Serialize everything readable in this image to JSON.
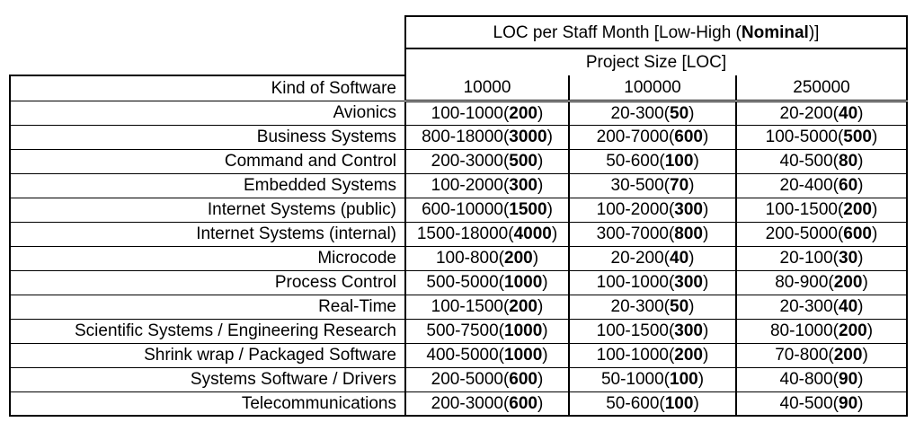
{
  "colors": {
    "background": "#ffffff",
    "border": "#000000",
    "text": "#000000"
  },
  "table": {
    "title": {
      "prefix": "LOC per Staff Month [Low-High (",
      "bold": "Nominal",
      "suffix": ")]"
    },
    "subtitle": "Project Size [LOC]",
    "row_header": "Kind of Software",
    "size_columns": [
      "10000",
      "100000",
      "250000"
    ],
    "rows": [
      {
        "kind": "Avionics",
        "sizes": [
          {
            "low": 100,
            "high": 1000,
            "nominal": 200
          },
          {
            "low": 20,
            "high": 300,
            "nominal": 50
          },
          {
            "low": 20,
            "high": 200,
            "nominal": 40
          }
        ]
      },
      {
        "kind": "Business Systems",
        "sizes": [
          {
            "low": 800,
            "high": 18000,
            "nominal": 3000
          },
          {
            "low": 200,
            "high": 7000,
            "nominal": 600
          },
          {
            "low": 100,
            "high": 5000,
            "nominal": 500
          }
        ]
      },
      {
        "kind": "Command and Control",
        "sizes": [
          {
            "low": 200,
            "high": 3000,
            "nominal": 500
          },
          {
            "low": 50,
            "high": 600,
            "nominal": 100
          },
          {
            "low": 40,
            "high": 500,
            "nominal": 80
          }
        ]
      },
      {
        "kind": "Embedded Systems",
        "sizes": [
          {
            "low": 100,
            "high": 2000,
            "nominal": 300
          },
          {
            "low": 30,
            "high": 500,
            "nominal": 70
          },
          {
            "low": 20,
            "high": 400,
            "nominal": 60
          }
        ]
      },
      {
        "kind": "Internet Systems (public)",
        "sizes": [
          {
            "low": 600,
            "high": 10000,
            "nominal": 1500
          },
          {
            "low": 100,
            "high": 2000,
            "nominal": 300
          },
          {
            "low": 100,
            "high": 1500,
            "nominal": 200
          }
        ]
      },
      {
        "kind": "Internet Systems (internal)",
        "sizes": [
          {
            "low": 1500,
            "high": 18000,
            "nominal": 4000
          },
          {
            "low": 300,
            "high": 7000,
            "nominal": 800
          },
          {
            "low": 200,
            "high": 5000,
            "nominal": 600
          }
        ]
      },
      {
        "kind": "Microcode",
        "sizes": [
          {
            "low": 100,
            "high": 800,
            "nominal": 200
          },
          {
            "low": 20,
            "high": 200,
            "nominal": 40
          },
          {
            "low": 20,
            "high": 100,
            "nominal": 30
          }
        ]
      },
      {
        "kind": "Process Control",
        "sizes": [
          {
            "low": 500,
            "high": 5000,
            "nominal": 1000
          },
          {
            "low": 100,
            "high": 1000,
            "nominal": 300
          },
          {
            "low": 80,
            "high": 900,
            "nominal": 200
          }
        ]
      },
      {
        "kind": "Real-Time",
        "sizes": [
          {
            "low": 100,
            "high": 1500,
            "nominal": 200
          },
          {
            "low": 20,
            "high": 300,
            "nominal": 50
          },
          {
            "low": 20,
            "high": 300,
            "nominal": 40
          }
        ]
      },
      {
        "kind": "Scientific Systems / Engineering Research",
        "sizes": [
          {
            "low": 500,
            "high": 7500,
            "nominal": 1000
          },
          {
            "low": 100,
            "high": 1500,
            "nominal": 300
          },
          {
            "low": 80,
            "high": 1000,
            "nominal": 200
          }
        ]
      },
      {
        "kind": "Shrink wrap / Packaged Software",
        "sizes": [
          {
            "low": 400,
            "high": 5000,
            "nominal": 1000
          },
          {
            "low": 100,
            "high": 1000,
            "nominal": 200
          },
          {
            "low": 70,
            "high": 800,
            "nominal": 200
          }
        ]
      },
      {
        "kind": "Systems Software / Drivers",
        "sizes": [
          {
            "low": 200,
            "high": 5000,
            "nominal": 600
          },
          {
            "low": 50,
            "high": 1000,
            "nominal": 100
          },
          {
            "low": 40,
            "high": 800,
            "nominal": 90
          }
        ]
      },
      {
        "kind": "Telecommunications",
        "sizes": [
          {
            "low": 200,
            "high": 3000,
            "nominal": 600
          },
          {
            "low": 50,
            "high": 600,
            "nominal": 100
          },
          {
            "low": 40,
            "high": 500,
            "nominal": 90
          }
        ]
      }
    ]
  }
}
